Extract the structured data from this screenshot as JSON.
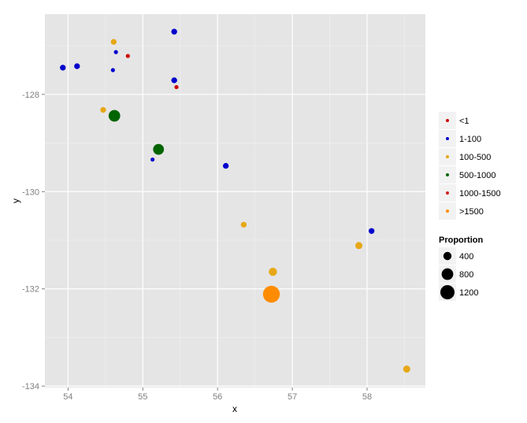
{
  "chart_data": {
    "type": "scatter",
    "title": "",
    "xlabel": "x",
    "ylabel": "y",
    "xlim": [
      53.69,
      58.78
    ],
    "ylim": [
      -134.03,
      -126.35
    ],
    "xticks": [
      54,
      55,
      56,
      57,
      58
    ],
    "yticks": [
      -128,
      -130,
      -132,
      -134
    ],
    "grid": true,
    "colour_legend": {
      "placement": "right",
      "entries": [
        {
          "label": "<1",
          "color": "#CC0000"
        },
        {
          "label": "1-100",
          "color": "#0000CC"
        },
        {
          "label": "100-500",
          "color": "#E6A817"
        },
        {
          "label": "500-1000",
          "color": "#006400"
        },
        {
          "label": "1000-1500",
          "color": "#D42020"
        },
        {
          "label": ">1500",
          "color": "#FF8C00"
        }
      ]
    },
    "size_legend": {
      "title": "Proportion",
      "placement": "right",
      "entries": [
        400,
        800,
        1200
      ]
    },
    "points": [
      {
        "x": 55.42,
        "y": -126.71,
        "group": "1-100",
        "size": 200
      },
      {
        "x": 54.61,
        "y": -126.92,
        "group": "100-500",
        "size": 200
      },
      {
        "x": 54.64,
        "y": -127.13,
        "group": "1-100",
        "size": 100
      },
      {
        "x": 54.8,
        "y": -127.21,
        "group": "<1",
        "size": 100
      },
      {
        "x": 53.93,
        "y": -127.45,
        "group": "1-100",
        "size": 200
      },
      {
        "x": 54.12,
        "y": -127.42,
        "group": "1-100",
        "size": 200
      },
      {
        "x": 54.6,
        "y": -127.5,
        "group": "1-100",
        "size": 100
      },
      {
        "x": 55.42,
        "y": -127.71,
        "group": "1-100",
        "size": 200
      },
      {
        "x": 55.45,
        "y": -127.85,
        "group": "<1",
        "size": 100
      },
      {
        "x": 54.47,
        "y": -128.32,
        "group": "100-500",
        "size": 200
      },
      {
        "x": 54.62,
        "y": -128.44,
        "group": "500-1000",
        "size": 800
      },
      {
        "x": 55.21,
        "y": -129.13,
        "group": "500-1000",
        "size": 700
      },
      {
        "x": 55.13,
        "y": -129.34,
        "group": "1-100",
        "size": 100
      },
      {
        "x": 56.11,
        "y": -129.47,
        "group": "1-100",
        "size": 200
      },
      {
        "x": 56.35,
        "y": -130.68,
        "group": "100-500",
        "size": 200
      },
      {
        "x": 58.06,
        "y": -130.81,
        "group": "1-100",
        "size": 200
      },
      {
        "x": 57.89,
        "y": -131.11,
        "group": "100-500",
        "size": 300
      },
      {
        "x": 56.74,
        "y": -131.65,
        "group": "100-500",
        "size": 400
      },
      {
        "x": 56.72,
        "y": -132.11,
        "group": ">1500",
        "size": 1700
      },
      {
        "x": 58.53,
        "y": -133.65,
        "group": "100-500",
        "size": 300
      }
    ]
  }
}
